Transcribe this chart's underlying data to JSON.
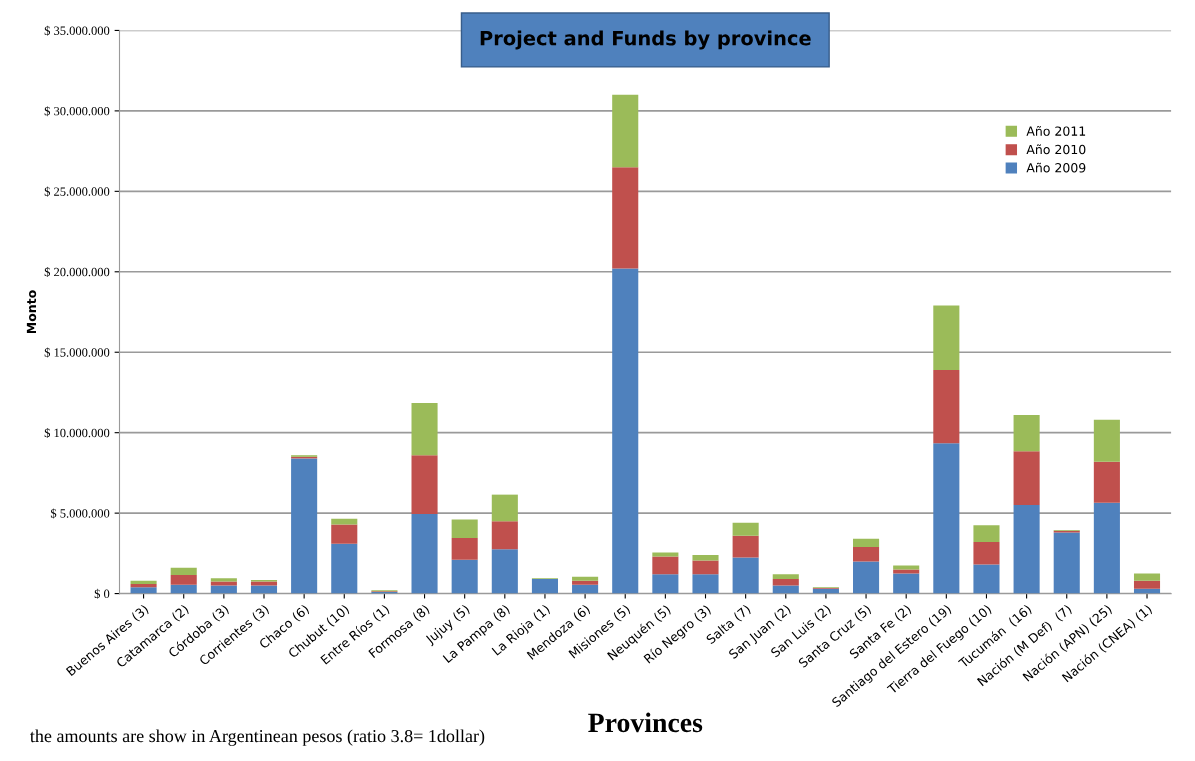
{
  "chart_data": {
    "type": "bar",
    "stacked": true,
    "title": "Project and Funds by province",
    "xlabel": "Provinces",
    "ylabel": "Monto",
    "categories": [
      "Buenos Aires (3)",
      "Catamarca (2)",
      "Córdoba (3)",
      "Corrientes (3)",
      "Chaco (6)",
      "Chubut (10)",
      "Entre Ríos (1)",
      "Formosa (8)",
      "Jujuy (5)",
      "La Pampa (8)",
      "La Rioja (1)",
      "Mendoza (6)",
      "Misiones (5)",
      "Neuquén (5)",
      "Río Negro (3)",
      "Salta (7)",
      "San Juan (2)",
      "San Luis (2)",
      "Santa Cruz (5)",
      "Santa Fe (2)",
      "Santiago del Estero (19)",
      "Tierra del Fuego (10)",
      "Tucumán  (16)",
      "Nación (M Def)  (7)",
      "Nación (APN) (25)",
      "Nación (CNEA) (1)"
    ],
    "series": [
      {
        "name": "Año 2009",
        "color": "#4f81bd",
        "values": [
          400000,
          550000,
          500000,
          500000,
          8400000,
          3100000,
          100000,
          4950000,
          2100000,
          2750000,
          900000,
          550000,
          20200000,
          1200000,
          1200000,
          2250000,
          500000,
          300000,
          2000000,
          1250000,
          9350000,
          1800000,
          5500000,
          3800000,
          5650000,
          300000
        ]
      },
      {
        "name": "Año 2010",
        "color": "#c0504d",
        "values": [
          200000,
          600000,
          250000,
          250000,
          100000,
          1200000,
          50000,
          3650000,
          1350000,
          1750000,
          0,
          250000,
          6300000,
          1100000,
          850000,
          1350000,
          400000,
          50000,
          900000,
          250000,
          4550000,
          1400000,
          3350000,
          100000,
          2550000,
          500000
        ]
      },
      {
        "name": "Año 2011",
        "color": "#9bbb59",
        "values": [
          200000,
          450000,
          200000,
          100000,
          100000,
          350000,
          50000,
          3250000,
          1150000,
          1650000,
          50000,
          250000,
          4500000,
          250000,
          350000,
          800000,
          300000,
          50000,
          500000,
          250000,
          4000000,
          1050000,
          2250000,
          50000,
          2600000,
          450000
        ]
      }
    ],
    "ylim": [
      0,
      35000000
    ],
    "yticks": [
      {
        "value": 0,
        "label": "$ 0"
      },
      {
        "value": 5000000,
        "label": "$ 5.000.000"
      },
      {
        "value": 10000000,
        "label": "$ 10.000.000"
      },
      {
        "value": 15000000,
        "label": "$ 15.000.000"
      },
      {
        "value": 20000000,
        "label": "$ 20.000.000"
      },
      {
        "value": 25000000,
        "label": "$ 25.000.000"
      },
      {
        "value": 30000000,
        "label": "$ 30.000.000"
      },
      {
        "value": 35000000,
        "label": "$ 35.000.000"
      }
    ],
    "grid": "y",
    "legend": "top right",
    "annotations": [
      "the amounts are show in Argentinean pesos (ratio 3.8= 1dollar)"
    ]
  }
}
